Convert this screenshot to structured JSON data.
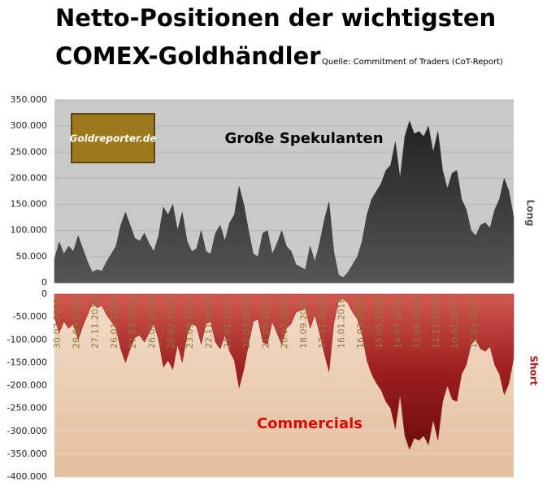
{
  "chart_data": {
    "type": "area",
    "title": [
      "Netto-Positionen der wichtigsten",
      "COMEX-Goldhändler"
    ],
    "subtitle": "Quelle: Commitment of Traders (CoT-Report)",
    "logo": "Goldreporter.de",
    "side_labels": [
      "Long",
      "Short"
    ],
    "x": [
      "30.07.2013",
      null,
      null,
      null,
      "28.09.2013",
      null,
      null,
      null,
      "27.11.2013",
      null,
      null,
      null,
      "26.01.2014",
      null,
      null,
      null,
      "27.03.2014",
      null,
      null,
      null,
      "26.05.2014",
      null,
      null,
      null,
      "25.07.2014",
      null,
      null,
      null,
      "23.09.2014",
      null,
      null,
      null,
      "22.11.2014",
      null,
      null,
      null,
      "21.01.2015",
      null,
      null,
      null,
      "22.03.2015",
      null,
      null,
      null,
      "21.05.2015",
      null,
      null,
      null,
      "20.07.2015",
      null,
      null,
      null,
      "18.09.2015",
      null,
      null,
      null,
      "17.11.2015",
      null,
      null,
      null,
      "16.01.2016",
      null,
      null,
      null,
      "16.03.2016",
      null,
      null,
      null,
      "15.05.2016",
      null,
      null,
      null,
      "14.07.2016",
      null,
      null,
      null,
      "12.09.2016",
      null,
      null,
      null,
      "11.11.2016",
      null,
      null,
      null,
      "10.01.2017",
      null,
      null,
      null,
      "11.03.2017",
      null,
      null,
      null,
      null,
      null,
      null,
      null,
      null,
      null
    ],
    "series": [
      {
        "name": "Große Spekulanten",
        "color": "#3a3a3a",
        "axis": "y",
        "values": [
          45000,
          78000,
          55000,
          70000,
          60000,
          90000,
          65000,
          40000,
          20000,
          25000,
          22000,
          40000,
          55000,
          70000,
          110000,
          135000,
          110000,
          85000,
          80000,
          95000,
          75000,
          60000,
          90000,
          145000,
          130000,
          150000,
          100000,
          135000,
          80000,
          60000,
          65000,
          100000,
          60000,
          55000,
          95000,
          110000,
          80000,
          115000,
          130000,
          185000,
          150000,
          100000,
          55000,
          50000,
          95000,
          100000,
          55000,
          75000,
          100000,
          70000,
          60000,
          35000,
          30000,
          25000,
          70000,
          40000,
          75000,
          120000,
          155000,
          60000,
          15000,
          10000,
          20000,
          35000,
          50000,
          80000,
          130000,
          160000,
          175000,
          190000,
          215000,
          225000,
          270000,
          200000,
          280000,
          310000,
          285000,
          290000,
          280000,
          300000,
          250000,
          290000,
          215000,
          180000,
          210000,
          215000,
          160000,
          140000,
          100000,
          90000,
          110000,
          115000,
          105000,
          140000,
          160000,
          200000,
          175000,
          125000
        ]
      },
      {
        "name": "Commercials",
        "color": "#a02020",
        "axis": "y2",
        "values": [
          -50000,
          -85000,
          -60000,
          -75000,
          -65000,
          -100000,
          -70000,
          -45000,
          -20000,
          -30000,
          -25000,
          -45000,
          -60000,
          -75000,
          -120000,
          -150000,
          -120000,
          -95000,
          -90000,
          -105000,
          -85000,
          -65000,
          -100000,
          -160000,
          -145000,
          -165000,
          -110000,
          -150000,
          -90000,
          -65000,
          -70000,
          -110000,
          -65000,
          -60000,
          -105000,
          -120000,
          -90000,
          -125000,
          -145000,
          -205000,
          -165000,
          -110000,
          -60000,
          -55000,
          -105000,
          -110000,
          -60000,
          -85000,
          -110000,
          -75000,
          -65000,
          -40000,
          -35000,
          -30000,
          -75000,
          -45000,
          -85000,
          -130000,
          -170000,
          -65000,
          -15000,
          -10000,
          -20000,
          -40000,
          -55000,
          -90000,
          -145000,
          -175000,
          -195000,
          -210000,
          -235000,
          -250000,
          -295000,
          -220000,
          -310000,
          -340000,
          -315000,
          -320000,
          -310000,
          -330000,
          -275000,
          -320000,
          -235000,
          -200000,
          -230000,
          -235000,
          -175000,
          -155000,
          -110000,
          -100000,
          -120000,
          -125000,
          -115000,
          -155000,
          -175000,
          -220000,
          -195000,
          -140000
        ]
      }
    ],
    "ylim": [
      0,
      350000
    ],
    "yticks": [
      0,
      {
        "value": 50000,
        "label": "50.000"
      },
      {
        "value": 100000,
        "label": "100.000"
      },
      {
        "value": 150000,
        "label": "150.000"
      },
      {
        "value": 200000,
        "label": "200.000"
      },
      {
        "value": 250000,
        "label": "250.000"
      },
      {
        "value": 300000,
        "label": "300.000"
      },
      {
        "value": 350000,
        "label": "350.000"
      }
    ],
    "y2lim": [
      -400000,
      0
    ],
    "y2ticks": [
      0,
      {
        "value": -50000,
        "label": "-50.000"
      },
      {
        "value": -100000,
        "label": "-100.000"
      },
      {
        "value": -150000,
        "label": "-150.000"
      },
      {
        "value": -200000,
        "label": "-200.000"
      },
      {
        "value": -250000,
        "label": "-250.000"
      },
      {
        "value": -300000,
        "label": "-300.000"
      },
      {
        "value": -350000,
        "label": "-350.000"
      },
      {
        "value": -400000,
        "label": "-400.000"
      }
    ],
    "grid": true
  }
}
